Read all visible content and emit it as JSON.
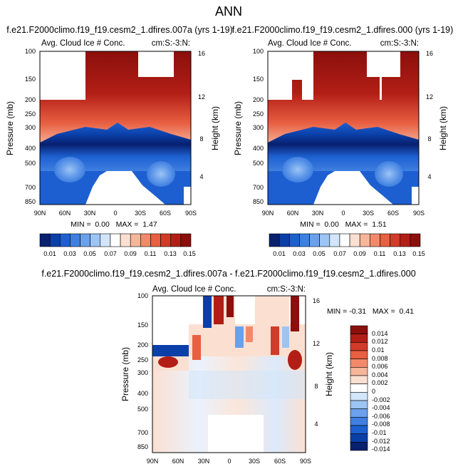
{
  "page_title": "ANN",
  "colors": {
    "ramp": [
      "#08206e",
      "#0a3fa8",
      "#1d5fd0",
      "#3f7fe0",
      "#6aa0ec",
      "#9cc4f4",
      "#d2e5fa",
      "#ffffff",
      "#fbe0d2",
      "#f7b59a",
      "#f28a6a",
      "#e85f42",
      "#d23b27",
      "#b21e16",
      "#8b0f0c"
    ]
  },
  "chart_data": [
    {
      "id": "panel_a",
      "type": "heatmap",
      "title": "f.e21.F2000climo.f19_f19.cesm2_1.dfires.007a (yrs 1-19)",
      "subtitle": "Avg. Cloud Ice # Conc.",
      "units_label": "cm:S:-3:N:",
      "ylabel": "Pressure (mb)",
      "y2label": "Height (km)",
      "x_ticks": [
        "90N",
        "60N",
        "30N",
        "0",
        "30S",
        "60S",
        "90S"
      ],
      "y_ticks": [
        "100",
        "150",
        "200",
        "250",
        "300",
        "400",
        "500",
        "700",
        "850"
      ],
      "y2_ticks": [
        "16",
        "12",
        "8",
        "4"
      ],
      "stats_text": "MIN =  0.00   MAX =  1.47",
      "min": 0.0,
      "max": 1.47,
      "colorbar_labels": [
        "0.01",
        "0.03",
        "0.05",
        "0.07",
        "0.09",
        "0.11",
        "0.13",
        "0.15"
      ]
    },
    {
      "id": "panel_b",
      "type": "heatmap",
      "title": "f.e21.F2000climo.f19_f19.cesm2_1.dfires.000 (yrs 1-19)",
      "subtitle": "Avg. Cloud Ice # Conc.",
      "units_label": "cm:S:-3:N:",
      "ylabel": "Pressure (mb)",
      "y2label": "Height (km)",
      "x_ticks": [
        "90N",
        "60N",
        "30N",
        "0",
        "30S",
        "60S",
        "90S"
      ],
      "y_ticks": [
        "100",
        "150",
        "200",
        "250",
        "300",
        "400",
        "500",
        "700",
        "850"
      ],
      "y2_ticks": [
        "16",
        "12",
        "8",
        "4"
      ],
      "stats_text": "MIN =  0.00   MAX =  1.51",
      "min": 0.0,
      "max": 1.51,
      "colorbar_labels": [
        "0.01",
        "0.03",
        "0.05",
        "0.07",
        "0.09",
        "0.11",
        "0.13",
        "0.15"
      ]
    },
    {
      "id": "panel_diff",
      "type": "heatmap",
      "title": "f.e21.F2000climo.f19_f19.cesm2_1.dfires.007a - f.e21.F2000climo.f19_f19.cesm2_1.dfires.000",
      "subtitle": "Avg. Cloud Ice # Conc.",
      "units_label": "cm:S:-3:N:",
      "ylabel": "Pressure (mb)",
      "y2label": "Height (km)",
      "x_ticks": [
        "90N",
        "60N",
        "30N",
        "0",
        "30S",
        "60S",
        "90S"
      ],
      "y_ticks": [
        "100",
        "150",
        "200",
        "250",
        "300",
        "400",
        "500",
        "700",
        "850"
      ],
      "y2_ticks": [
        "16",
        "12",
        "8",
        "4"
      ],
      "stats_text": "MIN = -0.31   MAX =  0.41",
      "min": -0.31,
      "max": 0.41,
      "colorbar_labels": [
        "0.014",
        "0.012",
        "0.01",
        "0.008",
        "0.006",
        "0.004",
        "0.002",
        "0",
        "-0.002",
        "-0.004",
        "-0.006",
        "-0.008",
        "-0.01",
        "-0.012",
        "-0.014"
      ]
    }
  ]
}
